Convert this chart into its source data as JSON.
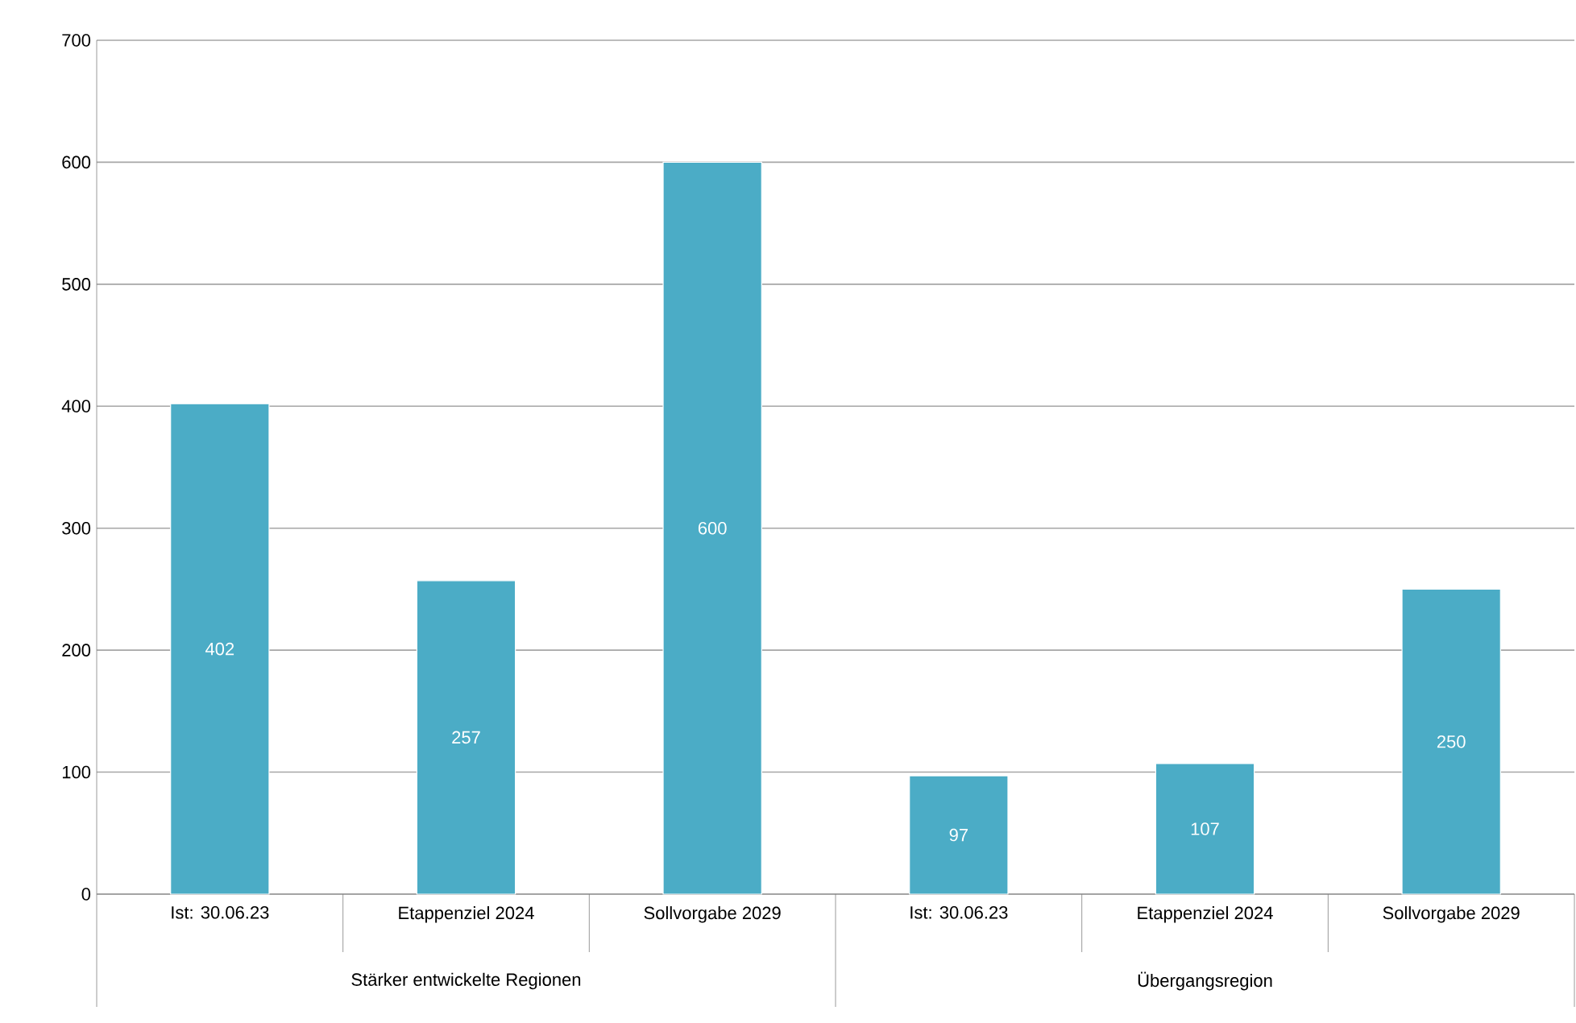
{
  "chart_data": {
    "type": "bar",
    "categories": [
      "Ist: 30.06.23",
      "Etappenziel 2024",
      "Sollvorgabe 2029",
      "Ist: 30.06.23",
      "Etappenziel 2024",
      "Sollvorgabe 2029"
    ],
    "values": [
      402,
      257,
      600,
      97,
      107,
      250
    ],
    "color": "#4bacc6",
    "data_labels": true,
    "ylim": [
      0,
      700
    ],
    "yticks": [
      0,
      100,
      200,
      300,
      400,
      500,
      600,
      700
    ],
    "grid": "y",
    "annotations": [
      "Stärker entwickelte Regionen",
      "Übergangsregion"
    ]
  }
}
